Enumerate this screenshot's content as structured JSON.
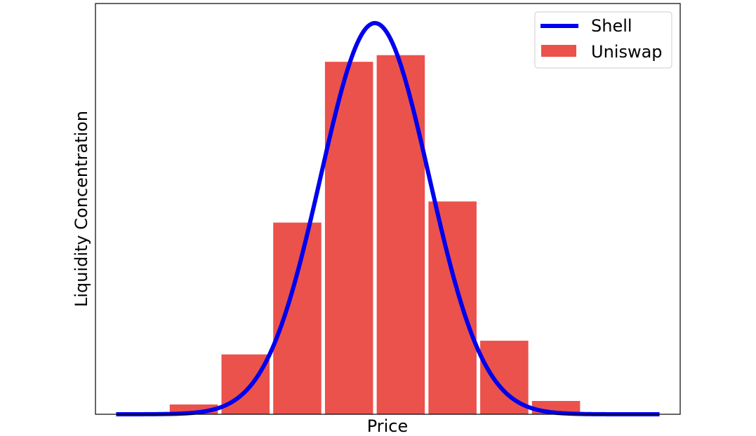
{
  "chart_data": {
    "type": "bar",
    "xlabel": "Price",
    "ylabel": "Liquidity Concentration",
    "x_range": [
      -5.4,
      5.9
    ],
    "y_range": [
      0,
      1.05
    ],
    "bar_width": 0.93,
    "legend": {
      "placement": "top-right"
    },
    "series": [
      {
        "name": "Uniswap",
        "type": "bar",
        "color": "#eb524b",
        "x": [
          -3.5,
          -2.5,
          -1.5,
          -0.5,
          0.5,
          1.5,
          2.5,
          3.5
        ],
        "values": [
          0.025,
          0.153,
          0.49,
          0.901,
          0.918,
          0.544,
          0.188,
          0.034
        ]
      },
      {
        "name": "Shell",
        "type": "line",
        "color": "#0000ee",
        "mu": 0,
        "sigma": 1.05,
        "peak": 1.0,
        "x_start": -5.0,
        "x_end": 5.5
      }
    ]
  }
}
